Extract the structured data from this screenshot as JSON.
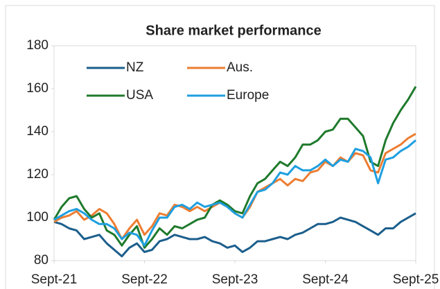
{
  "chart_data": {
    "type": "line",
    "title": "Share market performance",
    "x": [
      "2021-09",
      "2021-10",
      "2021-11",
      "2021-12",
      "2022-01",
      "2022-02",
      "2022-03",
      "2022-04",
      "2022-05",
      "2022-06",
      "2022-07",
      "2022-08",
      "2022-09",
      "2022-10",
      "2022-11",
      "2022-12",
      "2023-01",
      "2023-02",
      "2023-03",
      "2023-04",
      "2023-05",
      "2023-06",
      "2023-07",
      "2023-08",
      "2023-09",
      "2023-10",
      "2023-11",
      "2023-12",
      "2024-01",
      "2024-02",
      "2024-03",
      "2024-04",
      "2024-05",
      "2024-06",
      "2024-07",
      "2024-08",
      "2024-09",
      "2024-10",
      "2024-11",
      "2024-12",
      "2025-01",
      "2025-02",
      "2025-03",
      "2025-04",
      "2025-05",
      "2025-06",
      "2025-07",
      "2025-08",
      "2025-09"
    ],
    "xticks": [
      {
        "value": "2021-09",
        "label": "Sept-21"
      },
      {
        "value": "2022-09",
        "label": "Sept-22"
      },
      {
        "value": "2023-09",
        "label": "Sept-23"
      },
      {
        "value": "2024-09",
        "label": "Sept-24"
      },
      {
        "value": "2025-09",
        "label": "Sept-25"
      }
    ],
    "ylim": [
      80,
      180
    ],
    "yticks": [
      80,
      100,
      120,
      140,
      160,
      180
    ],
    "grid": false,
    "legend": "top-left",
    "series": [
      {
        "name": "NZ",
        "color": "#1b5e8c",
        "values": [
          98,
          97,
          95,
          94,
          90,
          91,
          92,
          88,
          85,
          82,
          86,
          88,
          84,
          85,
          89,
          90,
          92,
          91,
          90,
          90,
          91,
          89,
          88,
          86,
          87,
          84,
          86,
          89,
          89,
          90,
          91,
          90,
          92,
          93,
          95,
          97,
          97,
          98,
          100,
          99,
          98,
          96,
          94,
          92,
          95,
          95,
          98,
          100,
          102
        ]
      },
      {
        "name": "Aus.",
        "color": "#ed7d31",
        "values": [
          98,
          100,
          101,
          103,
          99,
          101,
          104,
          102,
          97,
          90,
          95,
          99,
          92,
          96,
          102,
          101,
          106,
          105,
          103,
          105,
          103,
          105,
          107,
          105,
          102,
          100,
          105,
          112,
          114,
          116,
          118,
          115,
          118,
          117,
          121,
          122,
          126,
          124,
          128,
          126,
          130,
          129,
          122,
          121,
          130,
          132,
          134,
          137,
          139
        ]
      },
      {
        "name": "USA",
        "color": "#1f7a2c",
        "values": [
          99,
          105,
          109,
          110,
          104,
          100,
          102,
          94,
          92,
          87,
          92,
          96,
          86,
          90,
          95,
          92,
          96,
          95,
          97,
          99,
          100,
          106,
          108,
          106,
          103,
          102,
          110,
          116,
          118,
          122,
          126,
          124,
          128,
          134,
          134,
          136,
          140,
          141,
          146,
          146,
          142,
          138,
          126,
          124,
          136,
          144,
          150,
          155,
          161
        ]
      },
      {
        "name": "Europe",
        "color": "#1e9fe0",
        "values": [
          99,
          101,
          103,
          104,
          102,
          99,
          97,
          97,
          95,
          90,
          93,
          92,
          87,
          94,
          100,
          100,
          105,
          106,
          104,
          107,
          105,
          106,
          107,
          105,
          102,
          100,
          106,
          112,
          113,
          116,
          121,
          120,
          124,
          122,
          122,
          124,
          127,
          124,
          127,
          126,
          132,
          131,
          128,
          116,
          127,
          128,
          131,
          133,
          136
        ]
      }
    ]
  }
}
